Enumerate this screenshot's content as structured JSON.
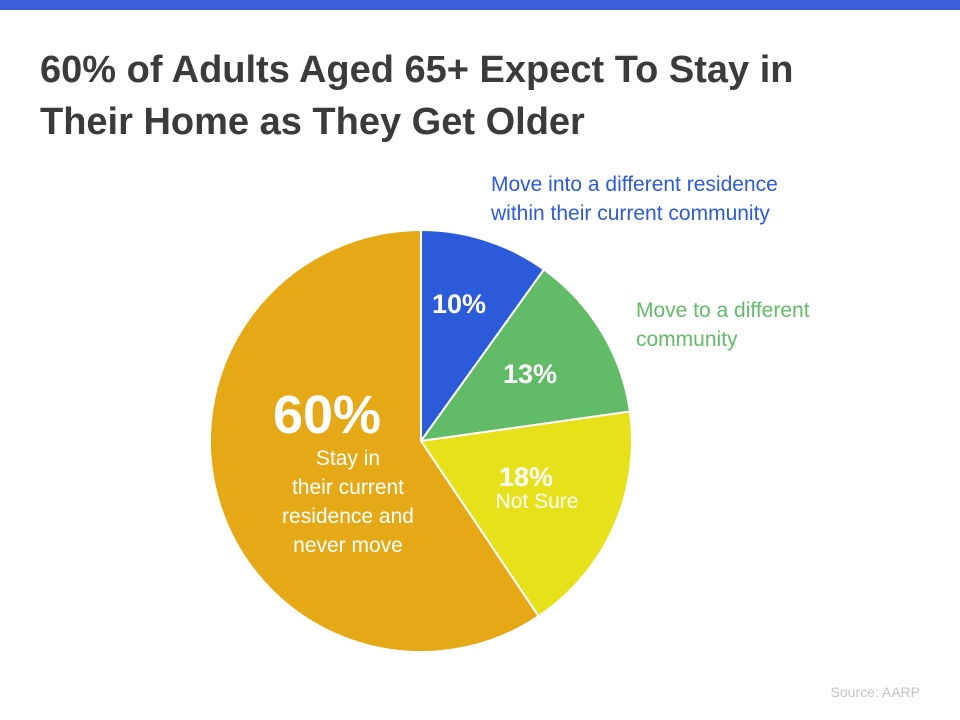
{
  "title_lines": [
    "60% of Adults Aged 65+ Expect To Stay in",
    "Their Home as They Get Older"
  ],
  "source": "Source: AARP",
  "chart_data": {
    "type": "pie",
    "title": "60% of Adults Aged 65+ Expect To Stay in Their Home as They Get Older",
    "slices": [
      {
        "value": 10,
        "label": "10%",
        "color": "#2b5bd9",
        "description_lines": [
          "Move into a different residence",
          "within their current community"
        ],
        "description_color": "#2b5bd9"
      },
      {
        "value": 13,
        "label": "13%",
        "color": "#61bb67",
        "description_lines": [
          "Move to a different",
          "community"
        ],
        "description_color": "#61bb67"
      },
      {
        "value": 18,
        "label": "18%",
        "color": "#e6e11a",
        "description_lines": [
          "Not Sure"
        ],
        "description_color": "#ffffff"
      },
      {
        "value": 60,
        "label": "60%",
        "color": "#e5a817",
        "description_lines": [
          "Stay in",
          "their current",
          "residence and",
          "never move"
        ],
        "description_color": "#ffffff"
      }
    ]
  }
}
